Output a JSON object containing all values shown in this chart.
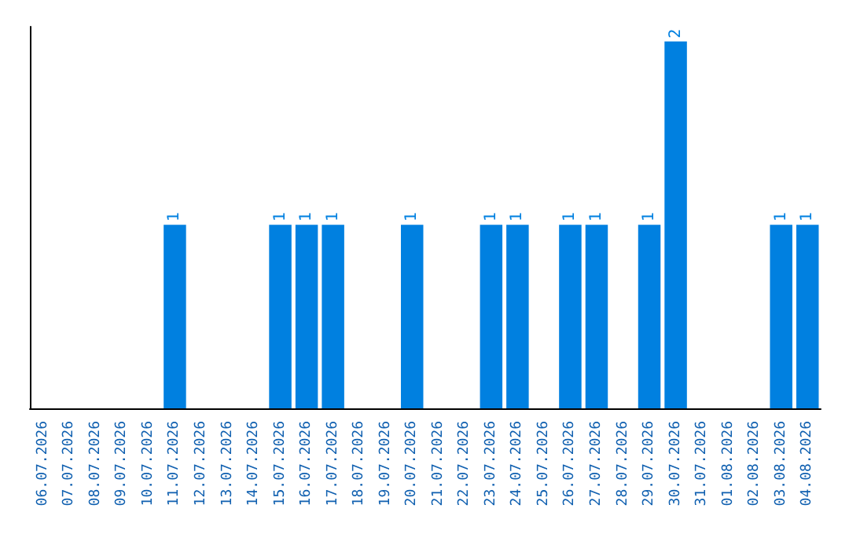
{
  "chart_data": {
    "type": "bar",
    "categories": [
      "06.07.2026",
      "07.07.2026",
      "08.07.2026",
      "09.07.2026",
      "10.07.2026",
      "11.07.2026",
      "12.07.2026",
      "13.07.2026",
      "14.07.2026",
      "15.07.2026",
      "16.07.2026",
      "17.07.2026",
      "18.07.2026",
      "19.07.2026",
      "20.07.2026",
      "21.07.2026",
      "22.07.2026",
      "23.07.2026",
      "24.07.2026",
      "25.07.2026",
      "26.07.2026",
      "27.07.2026",
      "28.07.2026",
      "29.07.2026",
      "30.07.2026",
      "31.07.2026",
      "01.08.2026",
      "02.08.2026",
      "03.08.2026",
      "04.08.2026"
    ],
    "values": [
      0,
      0,
      0,
      0,
      0,
      1,
      0,
      0,
      0,
      1,
      1,
      1,
      0,
      0,
      1,
      0,
      0,
      1,
      1,
      0,
      1,
      1,
      0,
      1,
      2,
      0,
      0,
      0,
      1,
      1
    ],
    "value_labels": [
      null,
      null,
      null,
      null,
      null,
      "1",
      null,
      null,
      null,
      "1",
      "1",
      "1",
      null,
      null,
      "1",
      null,
      null,
      "1",
      "1",
      null,
      "1",
      "1",
      null,
      "1",
      "2",
      null,
      null,
      null,
      "1",
      "1"
    ],
    "color": "#0080e0",
    "ylim": [
      0,
      2.08
    ],
    "tick_labels": "x"
  }
}
